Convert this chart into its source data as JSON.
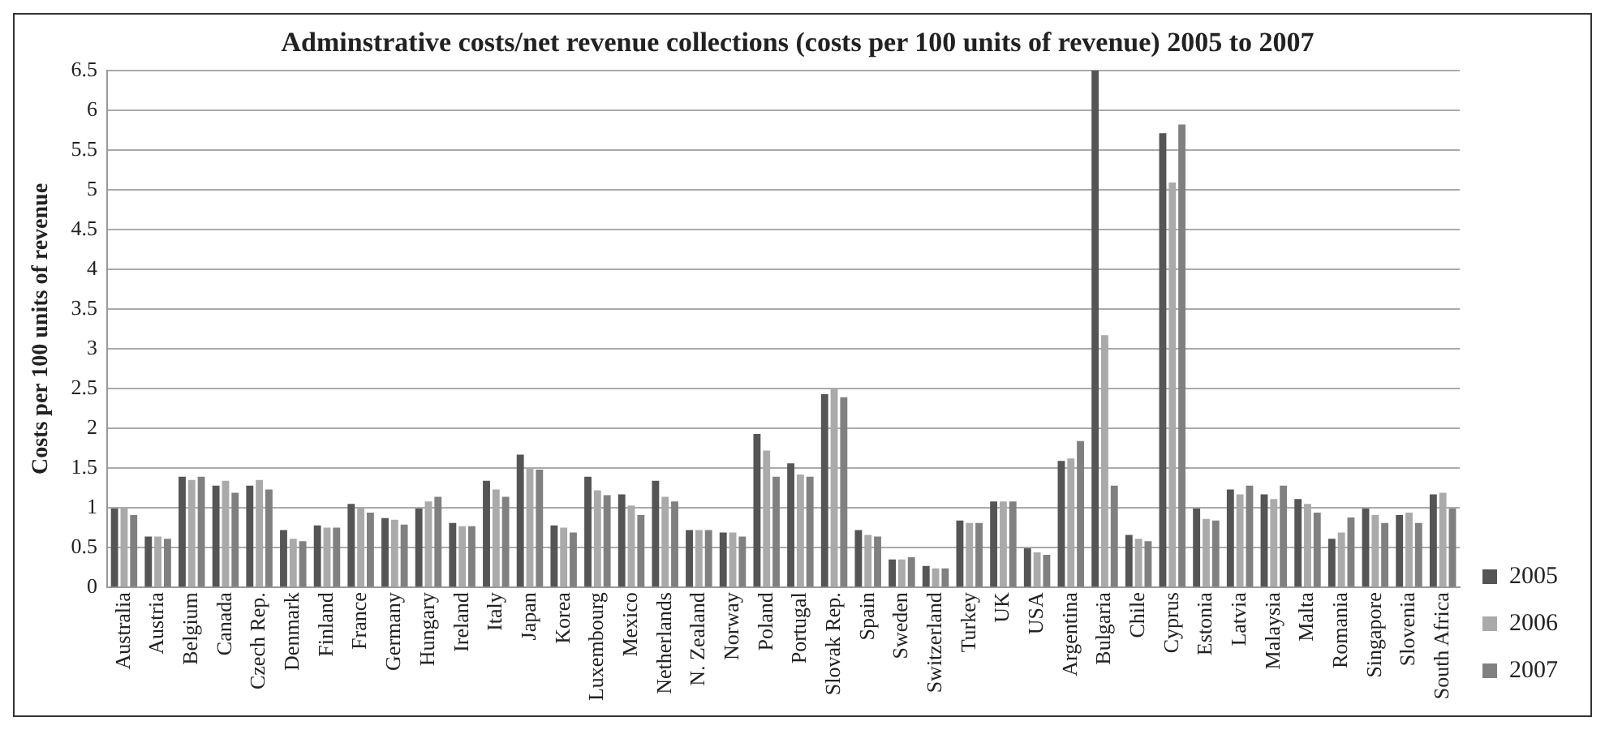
{
  "chart_data": {
    "type": "bar",
    "title": "Adminstrative costs/net revenue collections (costs per 100 units of revenue) 2005 to 2007",
    "ylabel": "Costs per 100 units of revenue",
    "categories": [
      "Australia",
      "Austria",
      "Belgium",
      "Canada",
      "Czech Rep.",
      "Denmark",
      "Finland",
      "France",
      "Germany",
      "Hungary",
      "Ireland",
      "Italy",
      "Japan",
      "Korea",
      "Luxembourg",
      "Mexico",
      "Netherlands",
      "N. Zealand",
      "Norway",
      "Poland",
      "Portugal",
      "Slovak Rep.",
      "Spain",
      "Sweden",
      "Switzerland",
      "Turkey",
      "UK",
      "USA",
      "Argentina",
      "Bulgaria",
      "Chile",
      "Cyprus",
      "Estonia",
      "Latvia",
      "Malaysia",
      "Malta",
      "Romania",
      "Singapore",
      "Slovenia",
      "South Africa"
    ],
    "series": [
      {
        "name": "2005",
        "color": "#555555",
        "values": [
          0.99,
          0.64,
          1.39,
          1.28,
          1.28,
          0.72,
          0.78,
          1.05,
          0.87,
          0.99,
          0.81,
          1.34,
          1.67,
          0.78,
          1.39,
          1.17,
          1.34,
          0.72,
          0.69,
          1.93,
          1.56,
          2.43,
          0.72,
          0.35,
          0.27,
          0.84,
          1.08,
          0.49,
          1.59,
          6.5,
          0.66,
          5.71,
          0.99,
          1.23,
          1.17,
          1.11,
          0.61,
          0.99,
          0.91,
          1.17
        ]
      },
      {
        "name": "2006",
        "color": "#aaaaaa",
        "values": [
          0.99,
          0.64,
          1.35,
          1.34,
          1.35,
          0.61,
          0.75,
          0.99,
          0.85,
          1.08,
          0.77,
          1.23,
          1.51,
          0.75,
          1.22,
          1.03,
          1.14,
          0.72,
          0.69,
          1.72,
          1.42,
          2.49,
          0.66,
          0.35,
          0.24,
          0.81,
          1.08,
          0.44,
          1.62,
          3.17,
          0.61,
          5.09,
          0.86,
          1.17,
          1.11,
          1.05,
          0.69,
          0.91,
          0.94,
          1.19
        ]
      },
      {
        "name": "2007",
        "color": "#808080",
        "values": [
          0.91,
          0.61,
          1.39,
          1.19,
          1.23,
          0.58,
          0.75,
          0.94,
          0.79,
          1.14,
          0.77,
          1.14,
          1.48,
          0.69,
          1.16,
          0.91,
          1.08,
          0.72,
          0.64,
          1.39,
          1.39,
          2.39,
          0.64,
          0.38,
          0.24,
          0.81,
          1.08,
          0.41,
          1.84,
          1.28,
          0.58,
          5.82,
          0.84,
          1.28,
          1.28,
          0.94,
          0.88,
          0.81,
          0.81,
          0.99
        ]
      }
    ],
    "ylim": [
      0,
      6.5
    ],
    "yticks": [
      0,
      0.5,
      1,
      1.5,
      2,
      2.5,
      3,
      3.5,
      4,
      4.5,
      5,
      5.5,
      6,
      6.5
    ],
    "grid": "y",
    "legend": "right"
  }
}
